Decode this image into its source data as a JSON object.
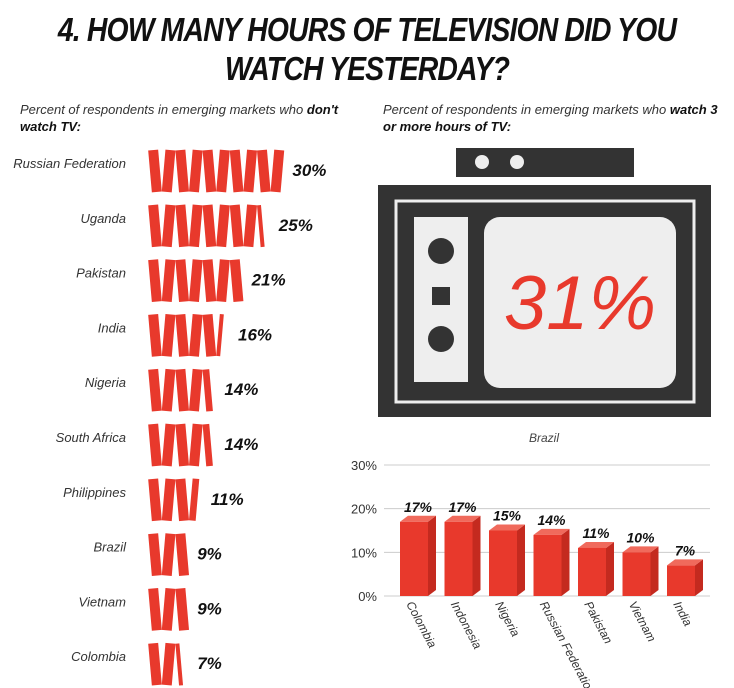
{
  "title": "4. HOW MANY HOURS OF TELEVISION DID YOU WATCH YESTERDAY?",
  "left_panel": {
    "subtitle_plain": "Percent of respondents in emerging markets who ",
    "subtitle_bold": "don't watch TV:"
  },
  "right_panel": {
    "subtitle_plain": "Percent of respondents in emerging markets who ",
    "subtitle_bold": "watch 3 or more hours of TV:",
    "highlight": {
      "value": "31%",
      "country": "Brazil"
    }
  },
  "colors": {
    "accent": "#e8392c",
    "accent_side": "#c42a1f",
    "tv_frame": "#333333",
    "screen": "#eeeeee"
  },
  "chart_data": [
    {
      "type": "bar",
      "orientation": "horizontal",
      "unit_per_icon": "3%",
      "categories": [
        "Russian Federation",
        "Uganda",
        "Pakistan",
        "India",
        "Nigeria",
        "South Africa",
        "Philippines",
        "Brazil",
        "Vietnam",
        "Colombia"
      ],
      "values": [
        30,
        25,
        21,
        16,
        14,
        14,
        11,
        9,
        9,
        7
      ],
      "labels": [
        "30%",
        "25%",
        "21%",
        "16%",
        "14%",
        "14%",
        "11%",
        "9%",
        "9%",
        "7%"
      ]
    },
    {
      "type": "bar",
      "categories": [
        "Colombia",
        "Indonesia",
        "Nigeria",
        "Russian Federation",
        "Pakistan",
        "Vietnam",
        "India"
      ],
      "values": [
        17,
        17,
        15,
        14,
        11,
        10,
        7
      ],
      "labels": [
        "17%",
        "17%",
        "15%",
        "14%",
        "11%",
        "10%",
        "7%"
      ],
      "ylim": [
        0,
        30
      ],
      "yticks": [
        "0%",
        "10%",
        "20%",
        "30%"
      ],
      "grid": true
    }
  ]
}
